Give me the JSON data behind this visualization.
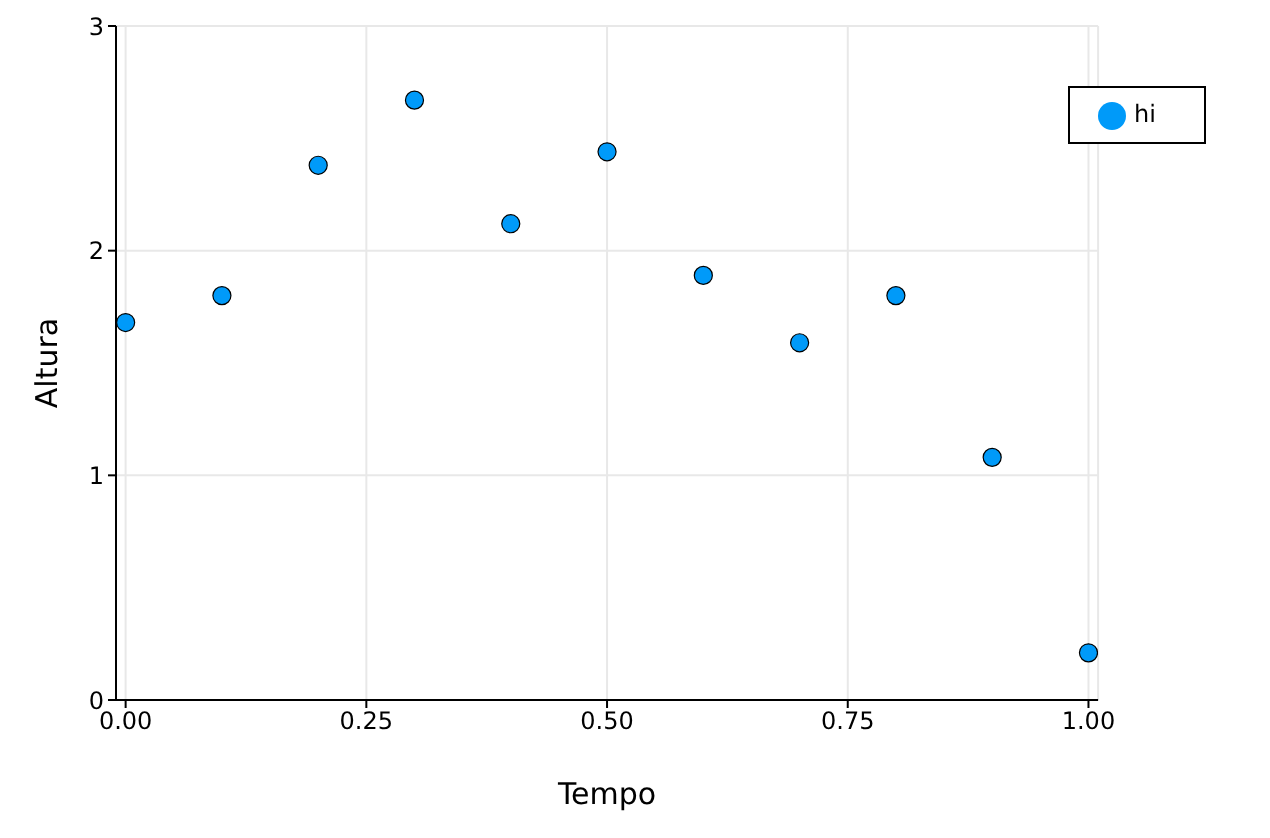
{
  "chart_data": {
    "type": "scatter",
    "xlabel": "Tempo",
    "ylabel": "Altura",
    "x": [
      0,
      0.1,
      0.2,
      0.3,
      0.4,
      0.5,
      0.6,
      0.7,
      0.8,
      0.9,
      1.0
    ],
    "series": [
      {
        "name": "hi",
        "color": "#009af9",
        "values": [
          1.68,
          1.8,
          2.38,
          2.67,
          2.12,
          2.44,
          1.89,
          1.59,
          1.8,
          1.08,
          0.21
        ]
      }
    ],
    "xlim": [
      -0.01,
      1.01
    ],
    "xticks": [
      {
        "value": 0,
        "label": "0.00"
      },
      {
        "value": 0.25,
        "label": "0.25"
      },
      {
        "value": 0.5,
        "label": "0.50"
      },
      {
        "value": 0.75,
        "label": "0.75"
      },
      {
        "value": 1,
        "label": "1.00"
      }
    ],
    "ylim": [
      0,
      3
    ],
    "yticks": [
      0,
      1,
      2,
      3
    ],
    "grid": true,
    "legend": "top right",
    "marker": "circle"
  }
}
